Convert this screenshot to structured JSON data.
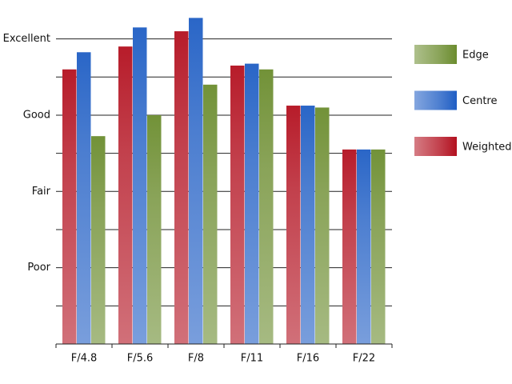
{
  "chart_data": {
    "type": "bar",
    "categories": [
      "F/4.8",
      "F/5.6",
      "F/8",
      "F/11",
      "F/16",
      "F/22"
    ],
    "series": [
      {
        "name": "Weighted",
        "color": "#b3101f",
        "values": [
          7.2,
          7.8,
          8.2,
          7.3,
          6.25,
          5.1
        ]
      },
      {
        "name": "Centre",
        "color": "#1f5ec4",
        "values": [
          7.65,
          8.3,
          8.55,
          7.35,
          6.25,
          5.1
        ]
      },
      {
        "name": "Edge",
        "color": "#6b8c2e",
        "values": [
          5.45,
          6.0,
          6.8,
          7.2,
          6.2,
          5.1
        ]
      }
    ],
    "ylim": [
      0,
      8.6
    ],
    "yticks": [
      {
        "value": 2,
        "label": "Poor"
      },
      {
        "value": 4,
        "label": "Fair"
      },
      {
        "value": 6,
        "label": "Good"
      },
      {
        "value": 8,
        "label": "Excellent"
      }
    ],
    "minor_yticks": [
      1,
      3,
      5,
      7
    ],
    "grid": true,
    "legend": "right"
  }
}
